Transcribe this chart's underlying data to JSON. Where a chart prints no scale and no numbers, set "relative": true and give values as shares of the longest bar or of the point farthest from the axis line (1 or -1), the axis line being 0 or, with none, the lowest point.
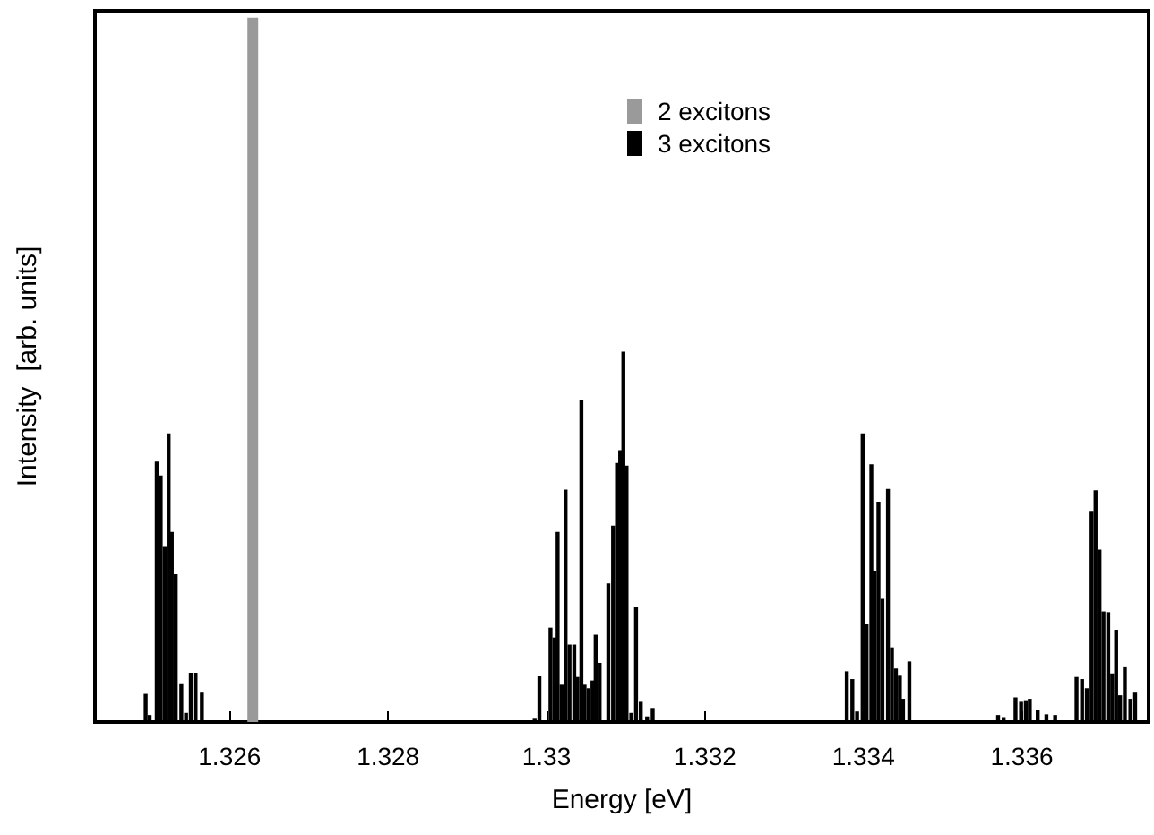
{
  "chart_data": {
    "type": "bar",
    "relative": true,
    "xlabel": "Energy [eV]",
    "ylabel": "Intensity  [arb. units]",
    "xlim": [
      1.3243,
      1.3376
    ],
    "xticks": [
      1.326,
      1.328,
      1.33,
      1.332,
      1.334,
      1.336
    ],
    "legend": "top",
    "series": [
      {
        "name": "2 excitons",
        "color": "#9a9a9a",
        "x": [
          1.32625
        ],
        "values": [
          1
        ]
      },
      {
        "name": "3 excitons",
        "color": "#000000",
        "x": [
          1.32494,
          1.32499,
          1.32508,
          1.32513,
          1.32518,
          1.32523,
          1.32527,
          1.32532,
          1.32539,
          1.32545,
          1.32551,
          1.32557,
          1.32565,
          1.32985,
          1.32991,
          1.33005,
          1.3301,
          1.33014,
          1.33019,
          1.33024,
          1.33029,
          1.33035,
          1.33039,
          1.33044,
          1.33048,
          1.33053,
          1.33058,
          1.33062,
          1.33067,
          1.33078,
          1.33084,
          1.33089,
          1.33093,
          1.33097,
          1.33101,
          1.33107,
          1.33113,
          1.33119,
          1.33127,
          1.33134,
          1.33379,
          1.33386,
          1.33392,
          1.33399,
          1.33404,
          1.3341,
          1.33414,
          1.33419,
          1.33424,
          1.33431,
          1.33436,
          1.33441,
          1.33446,
          1.3345,
          1.33458,
          1.3357,
          1.33577,
          1.33592,
          1.33599,
          1.33605,
          1.3361,
          1.3362,
          1.33631,
          1.33642,
          1.33669,
          1.33676,
          1.33682,
          1.33688,
          1.33693,
          1.33698,
          1.33703,
          1.33709,
          1.33714,
          1.33719,
          1.33724,
          1.3373,
          1.33737,
          1.33743
        ],
        "values": [
          0.04,
          0.01,
          0.37,
          0.35,
          0.25,
          0.41,
          0.27,
          0.21,
          0.055,
          0.013,
          0.07,
          0.07,
          0.043,
          0.006,
          0.066,
          0.134,
          0.12,
          0.27,
          0.053,
          0.33,
          0.11,
          0.11,
          0.064,
          0.457,
          0.053,
          0.048,
          0.059,
          0.124,
          0.084,
          0.197,
          0.279,
          0.368,
          0.386,
          0.526,
          0.364,
          0.013,
          0.164,
          0.03,
          0.008,
          0.02,
          0.072,
          0.061,
          0.015,
          0.41,
          0.139,
          0.366,
          0.215,
          0.313,
          0.175,
          0.331,
          0.106,
          0.076,
          0.067,
          0.033,
          0.086,
          0.01,
          0.007,
          0.035,
          0.03,
          0.031,
          0.033,
          0.017,
          0.011,
          0.01,
          0.064,
          0.061,
          0.048,
          0.3,
          0.329,
          0.245,
          0.157,
          0.156,
          0.069,
          0.131,
          0.038,
          0.079,
          0.033,
          0.043
        ]
      }
    ]
  }
}
